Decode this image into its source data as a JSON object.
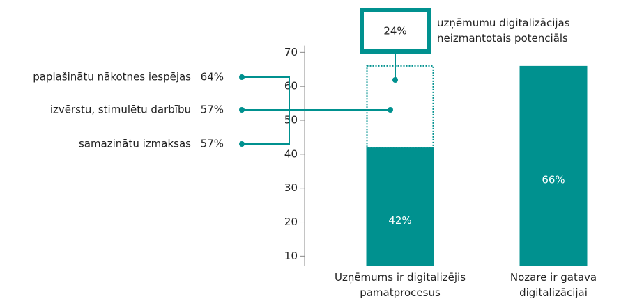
{
  "chart_data": {
    "type": "bar",
    "categories": [
      "Uzņēmums ir digitalizējis pamatprocesus",
      "Nozare ir gatava digitalizācijai"
    ],
    "values": [
      42,
      66
    ],
    "value_labels": [
      "42%",
      "66%"
    ],
    "color": "#00918f",
    "potential": {
      "value": 24,
      "label": "24%",
      "text": "uzņēmumu digitalizācijas neizmantotais potenciāls"
    },
    "drivers": [
      {
        "label": "paplašinātu nākotnes iespējas",
        "share": "64%"
      },
      {
        "label": "izvērstu, stimulētu darbību",
        "share": "57%"
      },
      {
        "label": "samazinātu izmaksas",
        "share": "57%"
      }
    ],
    "ylim": [
      7,
      72
    ],
    "yticks": [
      10,
      20,
      30,
      40,
      50,
      60,
      70
    ]
  }
}
